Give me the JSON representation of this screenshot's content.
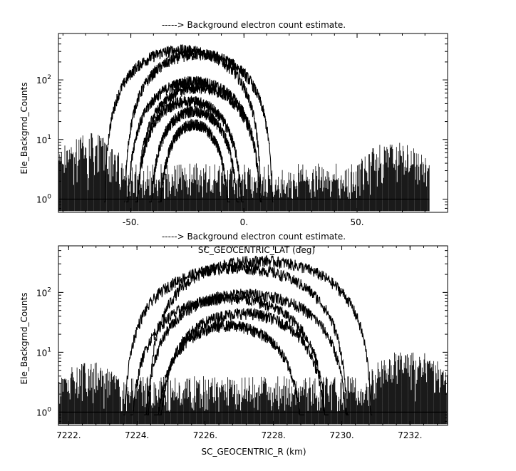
{
  "chart_data": [
    {
      "type": "line",
      "title": "-----> Background electron count estimate.",
      "xlabel": "SC_GEOCENTRIC_LAT (deg)",
      "ylabel": "Ele_Backgrnd_Counts",
      "xlim": [
        -82,
        90
      ],
      "ylim": [
        0.6,
        600
      ],
      "yscale": "log",
      "x_ticks": [
        -50,
        0,
        50
      ],
      "x_tick_labels": [
        "-50.",
        "0.",
        "50."
      ],
      "y_ticks": [
        1,
        10,
        100
      ],
      "y_tick_labels": [
        "10^0",
        "10^1",
        "10^2"
      ],
      "noise_segments": [
        {
          "x_start": -82,
          "x_end": -40,
          "level": 1
        },
        {
          "x_start": 5,
          "x_end": 50,
          "level": 1
        },
        {
          "x_start": 50,
          "x_end": 82,
          "level": 1
        }
      ],
      "noise_bumps": [
        {
          "x_start": -82,
          "x_end": -55,
          "peak": 12
        },
        {
          "x_start": 50,
          "x_end": 82,
          "peak": 8
        }
      ],
      "series": [
        {
          "peak_x": -27,
          "peak_y": 320,
          "half_width": 35
        },
        {
          "peak_x": -20,
          "peak_y": 270,
          "half_width": 33
        },
        {
          "peak_x": -22,
          "peak_y": 95,
          "half_width": 30
        },
        {
          "peak_x": -20,
          "peak_y": 75,
          "half_width": 28
        },
        {
          "peak_x": -24,
          "peak_y": 45,
          "half_width": 24
        },
        {
          "peak_x": -22,
          "peak_y": 30,
          "half_width": 20
        },
        {
          "peak_x": -22,
          "peak_y": 18,
          "half_width": 16
        }
      ],
      "grid": false
    },
    {
      "type": "line",
      "title": "-----> Background electron count estimate.",
      "xlabel": "SC_GEOCENTRIC_R (km)",
      "ylabel": "Ele_Backgrnd_Counts",
      "xlim": [
        7221.7,
        7233.1
      ],
      "ylim": [
        0.6,
        600
      ],
      "yscale": "log",
      "x_ticks": [
        7222,
        7224,
        7226,
        7228,
        7230,
        7232
      ],
      "x_tick_labels": [
        "7222.",
        "7224.",
        "7226.",
        "7228.",
        "7230.",
        "7232."
      ],
      "y_ticks": [
        1,
        10,
        100
      ],
      "y_tick_labels": [
        "10^0",
        "10^1",
        "10^2"
      ],
      "noise_segments": [
        {
          "x_start": 7221.7,
          "x_end": 7233.1,
          "level": 1
        }
      ],
      "noise_bumps": [
        {
          "x_start": 7221.7,
          "x_end": 7223.5,
          "peak": 6
        },
        {
          "x_start": 7230.8,
          "x_end": 7233.1,
          "peak": 10
        }
      ],
      "series": [
        {
          "peak_x": 7227.6,
          "peak_y": 340,
          "half_width": 3.3
        },
        {
          "peak_x": 7226.9,
          "peak_y": 260,
          "half_width": 3.3
        },
        {
          "peak_x": 7227.2,
          "peak_y": 95,
          "half_width": 3.0
        },
        {
          "peak_x": 7226.7,
          "peak_y": 80,
          "half_width": 2.9
        },
        {
          "peak_x": 7227.1,
          "peak_y": 45,
          "half_width": 2.5
        },
        {
          "peak_x": 7226.7,
          "peak_y": 28,
          "half_width": 2.2
        }
      ],
      "grid": false
    }
  ]
}
